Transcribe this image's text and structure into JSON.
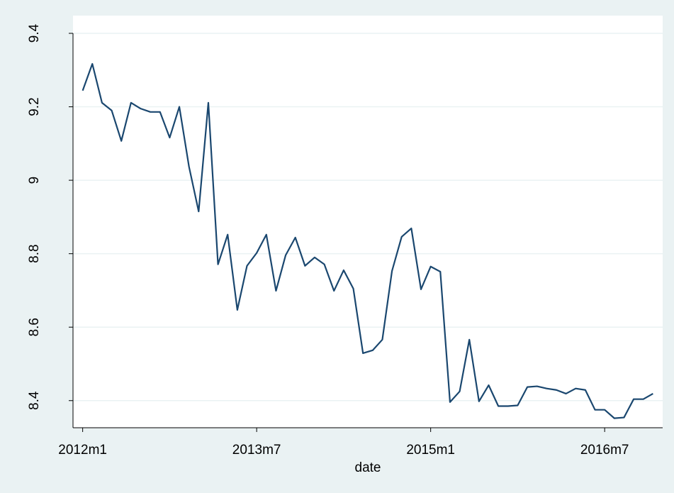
{
  "chart_data": {
    "type": "line",
    "x_label": "date",
    "x": [
      624,
      625,
      626,
      627,
      628,
      629,
      630,
      631,
      632,
      633,
      634,
      635,
      636,
      637,
      638,
      639,
      640,
      641,
      642,
      643,
      644,
      645,
      646,
      647,
      648,
      649,
      650,
      651,
      652,
      653,
      654,
      655,
      656,
      657,
      658,
      659,
      660,
      661,
      662,
      663,
      664,
      665,
      666,
      667,
      668,
      669,
      670,
      671,
      672,
      673,
      674,
      675,
      676,
      677,
      678,
      679,
      680,
      681,
      682,
      683
    ],
    "series": [
      {
        "name": "value",
        "color": "#1a476f",
        "values": [
          9.244,
          9.317,
          9.211,
          9.19,
          9.107,
          9.211,
          9.195,
          9.186,
          9.186,
          9.116,
          9.2,
          9.037,
          8.915,
          9.211,
          8.771,
          8.852,
          8.647,
          8.767,
          8.802,
          8.852,
          8.699,
          8.796,
          8.844,
          8.767,
          8.79,
          8.771,
          8.699,
          8.755,
          8.705,
          8.529,
          8.537,
          8.566,
          8.753,
          8.846,
          8.869,
          8.703,
          8.765,
          8.751,
          8.396,
          8.425,
          8.566,
          8.398,
          8.442,
          8.385,
          8.385,
          8.387,
          8.437,
          8.439,
          8.433,
          8.429,
          8.419,
          8.433,
          8.429,
          8.375,
          8.375,
          8.352,
          8.354,
          8.404,
          8.404,
          8.419
        ]
      }
    ],
    "xlim": [
      623,
      684
    ],
    "xticks": [
      {
        "value": 624,
        "label": "2012m1"
      },
      {
        "value": 642,
        "label": "2013m7"
      },
      {
        "value": 660,
        "label": "2015m1"
      },
      {
        "value": 678,
        "label": "2016m7"
      }
    ],
    "ylim": [
      8.33,
      9.4
    ],
    "yticks": [
      8.4,
      8.6,
      8.8,
      9,
      9.2,
      9.4
    ],
    "grid": true
  }
}
